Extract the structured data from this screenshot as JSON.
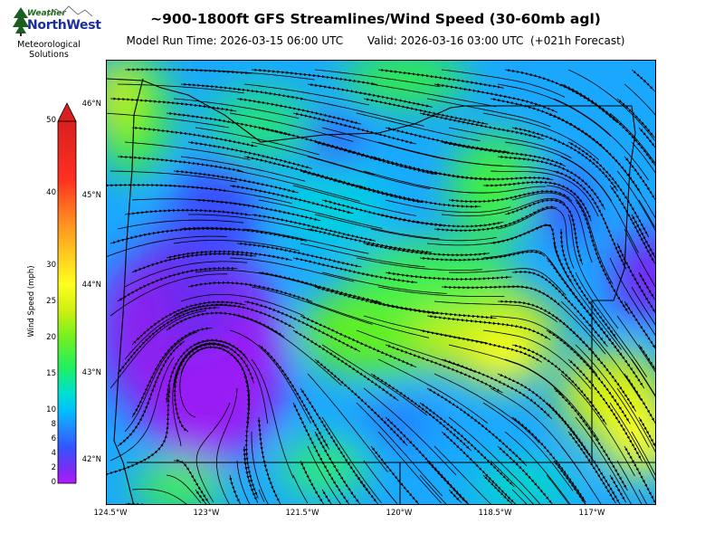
{
  "logo": {
    "brand_top": "Weather",
    "brand_main": "NorthWest",
    "org_line1": "Meteorological",
    "org_line2": "Solutions",
    "icon": "evergreen-tree-icon"
  },
  "title": "~900-1800ft GFS Streamlines/Wind Speed (30-60mb agl)",
  "subtitle": "Model Run Time: 2026-03-15 06:00 UTC       Valid: 2026-03-16 03:00 UTC  (+021h Forecast)",
  "colorbar": {
    "label": "Wind Speed (mph)",
    "ticks": [
      "0",
      "2",
      "4",
      "6",
      "8",
      "10",
      "15",
      "20",
      "25",
      "30",
      "40",
      "50"
    ],
    "colors": [
      "#b21bff",
      "#7a2df5",
      "#3355ff",
      "#1e90ff",
      "#00c0ff",
      "#00e0d0",
      "#20f060",
      "#70f020",
      "#d0f010",
      "#ffff20",
      "#ff9020",
      "#ff3020",
      "#d82020"
    ]
  },
  "map": {
    "lat_labels": [
      "46°N",
      "45°N",
      "44°N",
      "43°N",
      "42°N"
    ],
    "lon_labels": [
      "124.5°W",
      "123°W",
      "121.5°W",
      "120°W",
      "118.5°W",
      "117°W"
    ]
  }
}
